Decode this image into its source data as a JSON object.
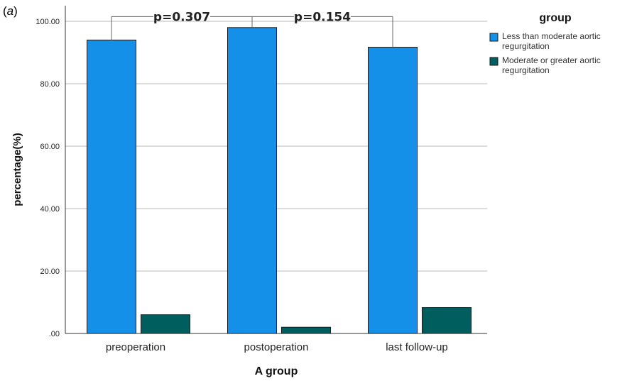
{
  "panel_label": "a",
  "chart_data": {
    "type": "bar",
    "categories": [
      "preoperation",
      "postoperation",
      "last follow-up"
    ],
    "series": [
      {
        "name": "Less than moderate aortic regurgitation",
        "values": [
          94.0,
          98.0,
          91.7
        ]
      },
      {
        "name": "Moderate or greater aortic regurgitation",
        "values": [
          6.0,
          2.0,
          8.3
        ]
      }
    ],
    "xlabel": "A group",
    "ylabel": "percentage(%)",
    "ylim": [
      0,
      105
    ],
    "yticks": [
      0,
      20,
      40,
      60,
      80,
      100
    ],
    "ytick_labels": [
      ".00",
      "20.00",
      "40.00",
      "60.00",
      "80.00",
      "100.00"
    ],
    "grid": true,
    "legend": {
      "title": "group",
      "position": "right",
      "entries": [
        {
          "line1": "Less than moderate aortic",
          "line2": "regurgitation"
        },
        {
          "line1": "Moderate or greater aortic",
          "line2": "regurgitation"
        }
      ]
    },
    "annotations": [
      {
        "text": "p=0.307",
        "from": "preoperation",
        "to": "postoperation"
      },
      {
        "text": "p=0.154",
        "from": "postoperation",
        "to": "last follow-up"
      }
    ],
    "colors": {
      "series1": "#1590e8",
      "series2": "#005e5e",
      "grid": "#c8c8c8",
      "axis": "#333333"
    }
  }
}
